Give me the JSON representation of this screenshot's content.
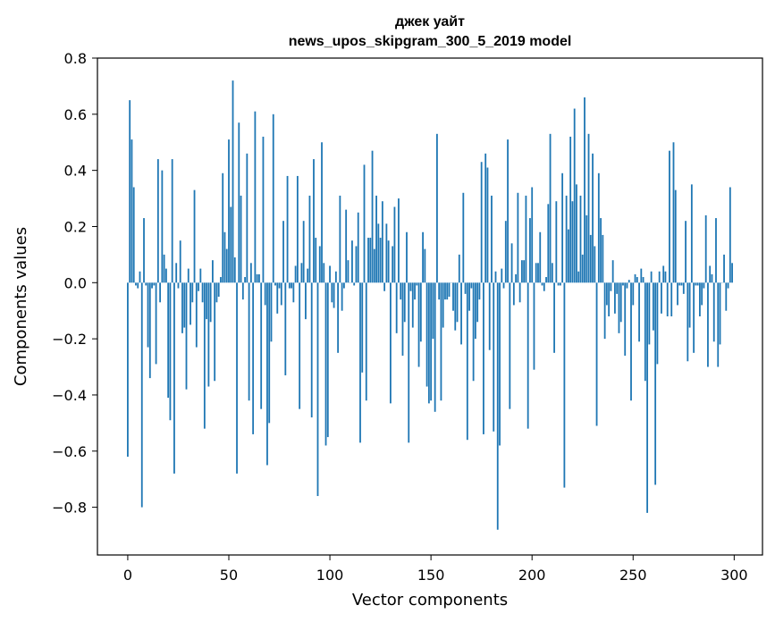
{
  "chart_data": {
    "type": "bar",
    "title": [
      "джек уайт",
      "news_upos_skipgram_300_5_2019 model"
    ],
    "xlabel": "Vector components",
    "ylabel": "Components values",
    "xlim": [
      -15,
      314
    ],
    "ylim": [
      -0.97,
      0.8
    ],
    "x_ticks": [
      0,
      50,
      100,
      150,
      200,
      250,
      300
    ],
    "x_tick_labels": [
      "0",
      "50",
      "100",
      "150",
      "200",
      "250",
      "300"
    ],
    "y_ticks": [
      -0.8,
      -0.6,
      -0.4,
      -0.2,
      0.0,
      0.2,
      0.4,
      0.6,
      0.8
    ],
    "y_tick_labels": [
      "−0.8",
      "−0.6",
      "−0.4",
      "−0.2",
      "0.0",
      "0.2",
      "0.4",
      "0.6",
      "0.8"
    ],
    "bar_color": "#1f77b4",
    "grid": false,
    "values": [
      -0.62,
      0.65,
      0.51,
      0.34,
      -0.01,
      -0.02,
      0.04,
      -0.8,
      0.23,
      -0.01,
      -0.23,
      -0.34,
      -0.02,
      -0.01,
      -0.29,
      0.44,
      -0.07,
      0.4,
      0.1,
      0.05,
      -0.41,
      -0.49,
      0.44,
      -0.68,
      0.07,
      -0.02,
      0.15,
      -0.18,
      -0.16,
      -0.38,
      0.05,
      -0.15,
      -0.07,
      0.33,
      -0.23,
      -0.03,
      0.05,
      -0.07,
      -0.52,
      -0.13,
      -0.37,
      -0.14,
      0.08,
      -0.35,
      -0.07,
      -0.05,
      0.02,
      0.39,
      0.18,
      0.12,
      0.51,
      0.27,
      0.72,
      0.09,
      -0.68,
      0.57,
      0.31,
      -0.06,
      0.02,
      0.46,
      -0.42,
      0.07,
      -0.54,
      0.61,
      0.03,
      0.03,
      -0.45,
      0.52,
      -0.08,
      -0.65,
      -0.5,
      -0.21,
      0.6,
      -0.01,
      -0.11,
      -0.02,
      -0.08,
      0.22,
      -0.33,
      0.38,
      -0.02,
      -0.02,
      -0.07,
      0.06,
      0.38,
      -0.45,
      0.07,
      0.22,
      -0.13,
      0.05,
      0.31,
      -0.48,
      0.44,
      0.16,
      -0.76,
      0.13,
      0.5,
      0.07,
      -0.58,
      -0.55,
      0.06,
      -0.07,
      -0.09,
      0.04,
      -0.25,
      0.31,
      -0.1,
      -0.02,
      0.26,
      0.08,
      0.0,
      0.15,
      -0.01,
      0.13,
      0.25,
      -0.57,
      -0.32,
      0.42,
      -0.42,
      0.16,
      0.16,
      0.47,
      0.12,
      0.31,
      0.21,
      0.16,
      0.29,
      -0.03,
      0.21,
      0.15,
      -0.43,
      0.13,
      0.27,
      -0.18,
      0.3,
      -0.06,
      -0.26,
      -0.14,
      0.18,
      -0.57,
      -0.03,
      -0.16,
      -0.06,
      -0.01,
      -0.3,
      -0.21,
      0.18,
      0.12,
      -0.37,
      -0.43,
      -0.42,
      -0.2,
      -0.46,
      0.53,
      -0.06,
      -0.42,
      -0.16,
      -0.06,
      -0.06,
      -0.05,
      0.0,
      -0.1,
      -0.17,
      -0.14,
      0.1,
      -0.22,
      0.32,
      -0.04,
      -0.56,
      -0.1,
      -0.02,
      -0.35,
      -0.2,
      -0.14,
      -0.06,
      0.43,
      -0.54,
      0.46,
      0.41,
      -0.24,
      0.31,
      -0.53,
      0.04,
      -0.88,
      -0.58,
      0.05,
      -0.02,
      0.22,
      0.51,
      -0.45,
      0.14,
      -0.08,
      0.03,
      0.32,
      -0.07,
      0.08,
      0.08,
      0.31,
      -0.52,
      0.23,
      0.34,
      -0.31,
      0.07,
      0.07,
      0.18,
      -0.01,
      -0.03,
      0.02,
      0.28,
      0.53,
      0.07,
      -0.25,
      0.29,
      -0.01,
      -0.01,
      0.39,
      -0.73,
      0.31,
      0.19,
      0.52,
      0.29,
      0.62,
      0.35,
      0.04,
      0.31,
      0.1,
      0.66,
      0.24,
      0.53,
      0.17,
      0.46,
      0.13,
      -0.51,
      0.39,
      0.23,
      0.17,
      -0.2,
      -0.08,
      -0.12,
      -0.03,
      0.08,
      -0.11,
      -0.04,
      -0.18,
      -0.14,
      -0.01,
      -0.26,
      -0.02,
      0.01,
      -0.42,
      -0.08,
      0.03,
      0.02,
      -0.21,
      0.05,
      0.02,
      -0.35,
      -0.82,
      -0.22,
      0.04,
      -0.17,
      -0.72,
      -0.29,
      0.04,
      -0.11,
      0.06,
      0.04,
      -0.12,
      0.47,
      -0.12,
      0.5,
      0.33,
      -0.08,
      -0.01,
      -0.01,
      -0.04,
      0.22,
      -0.28,
      -0.16,
      0.35,
      -0.25,
      -0.01,
      -0.01,
      -0.12,
      -0.08,
      -0.02,
      0.24,
      -0.3,
      0.06,
      0.03,
      -0.21,
      0.23,
      -0.3,
      -0.22,
      0.0,
      0.1,
      -0.1,
      -0.02,
      0.34,
      0.07
    ]
  }
}
